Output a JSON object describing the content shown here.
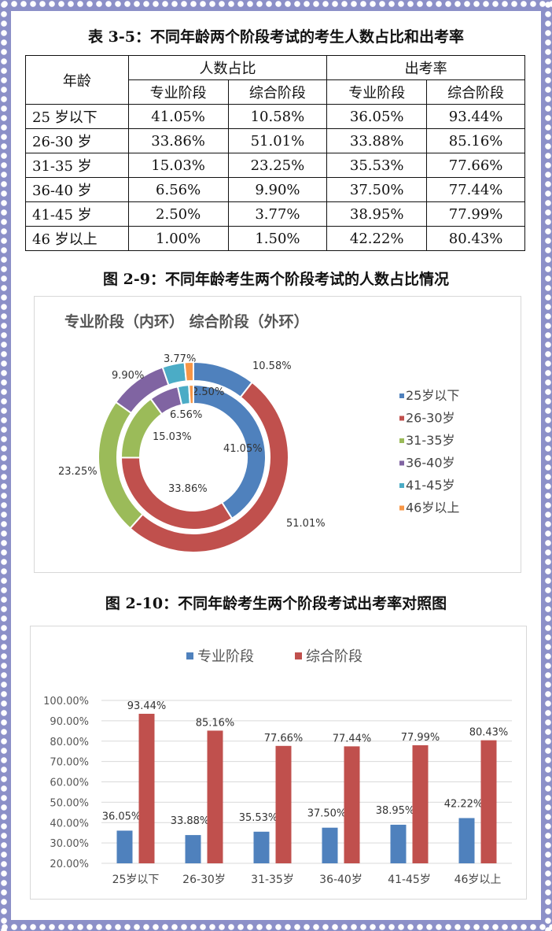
{
  "table": {
    "title": "表 3-5：不同年龄两个阶段考试的考生人数占比和出考率",
    "head_age": "年龄",
    "group1": "人数占比",
    "group2": "出考率",
    "sub": [
      "专业阶段",
      "综合阶段",
      "专业阶段",
      "综合阶段"
    ],
    "rows": [
      [
        "25 岁以下",
        "41.05%",
        "10.58%",
        "36.05%",
        "93.44%"
      ],
      [
        "26-30 岁",
        "33.86%",
        "51.01%",
        "33.88%",
        "85.16%"
      ],
      [
        "31-35 岁",
        "15.03%",
        "23.25%",
        "35.53%",
        "77.66%"
      ],
      [
        "36-40 岁",
        "6.56%",
        "9.90%",
        "37.50%",
        "77.44%"
      ],
      [
        "41-45 岁",
        "2.50%",
        "3.77%",
        "38.95%",
        "77.99%"
      ],
      [
        "46 岁以上",
        "1.00%",
        "1.50%",
        "42.22%",
        "80.43%"
      ]
    ]
  },
  "chart_data": [
    {
      "type": "pie",
      "title": "图 2-9：不同年龄考生两个阶段考试的人数占比情况",
      "subtitle": "专业阶段（内环）  综合阶段（外环）",
      "categories": [
        "25岁以下",
        "26-30岁",
        "31-35岁",
        "36-40岁",
        "41-45岁",
        "46岁以上"
      ],
      "colors": [
        "#4f81bd",
        "#c0504d",
        "#9bbb59",
        "#8064a2",
        "#4bacc6",
        "#f79646"
      ],
      "series": [
        {
          "name": "专业阶段",
          "values": [
            41.05,
            33.86,
            15.03,
            6.56,
            2.5,
            1.0
          ],
          "labels": [
            "41.05%",
            "33.86%",
            "15.03%",
            "6.56%",
            "2.50%",
            ""
          ]
        },
        {
          "name": "综合阶段",
          "values": [
            10.58,
            51.01,
            23.25,
            9.9,
            3.77,
            1.5
          ],
          "labels": [
            "10.58%",
            "51.01%",
            "23.25%",
            "9.90%",
            "3.77%",
            ""
          ]
        }
      ],
      "legend": "right"
    },
    {
      "type": "bar",
      "title": "图 2-10：不同年龄考生两个阶段考试出考率对照图",
      "categories": [
        "25岁以下",
        "26-30岁",
        "31-35岁",
        "36-40岁",
        "41-45岁",
        "46岁以上"
      ],
      "series": [
        {
          "name": "专业阶段",
          "color": "#4f81bd",
          "values": [
            36.05,
            33.88,
            35.53,
            37.5,
            38.95,
            42.22
          ]
        },
        {
          "name": "综合阶段",
          "color": "#c0504d",
          "values": [
            93.44,
            85.16,
            77.66,
            77.44,
            77.99,
            80.43
          ]
        }
      ],
      "ylim": [
        20,
        100
      ],
      "yticks": [
        "20.00%",
        "30.00%",
        "40.00%",
        "50.00%",
        "60.00%",
        "70.00%",
        "80.00%",
        "90.00%",
        "100.00%"
      ],
      "grid": true,
      "legend": "top"
    }
  ]
}
